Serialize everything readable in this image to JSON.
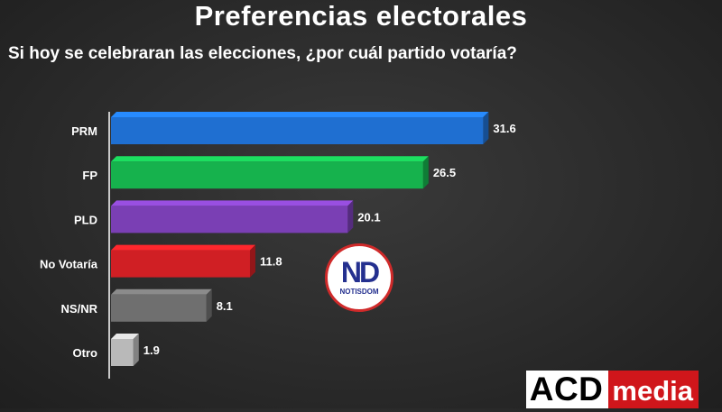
{
  "title": "Preferencias electorales",
  "subtitle": "Si hoy se celebraran las elecciones, ¿por cuál partido votaría?",
  "chart_data": {
    "type": "bar",
    "orientation": "horizontal",
    "categories": [
      "PRM",
      "FP",
      "PLD",
      "No Votaría",
      "NS/NR",
      "Otro"
    ],
    "values": [
      31.6,
      26.5,
      20.1,
      11.8,
      8.1,
      1.9
    ],
    "value_labels": [
      "31.6",
      "26.5",
      "20.1",
      "11.8",
      "8.1",
      "1.9"
    ],
    "colors": [
      "#1f6fd1",
      "#16b24d",
      "#7a3fb4",
      "#d01f24",
      "#6f6f6f",
      "#b9b9b9"
    ],
    "xlim": [
      0,
      32
    ],
    "grid": false,
    "legend": "none"
  },
  "logo": {
    "mark": "ND",
    "name": "NOTISDOM"
  },
  "brand": {
    "left": "ACD",
    "right": "media"
  }
}
